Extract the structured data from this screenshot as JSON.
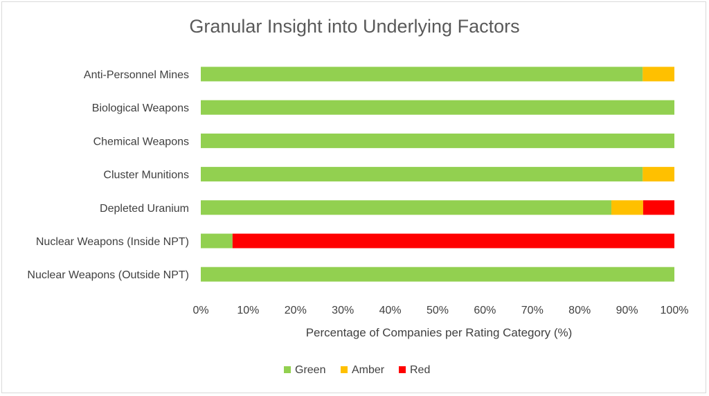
{
  "chart_data": {
    "type": "bar",
    "orientation": "horizontal",
    "stacked": true,
    "title": "Granular Insight into Underlying Factors",
    "xlabel": "Percentage of Companies per Rating Category (%)",
    "ylabel": "",
    "xlim": [
      0,
      100
    ],
    "x_ticks": [
      "0%",
      "10%",
      "20%",
      "30%",
      "40%",
      "50%",
      "60%",
      "70%",
      "80%",
      "90%",
      "100%"
    ],
    "categories": [
      "Anti-Personnel Mines",
      "Biological Weapons",
      "Chemical Weapons",
      "Cluster Munitions",
      "Depleted Uranium",
      "Nuclear Weapons (Inside NPT)",
      "Nuclear Weapons (Outside NPT)"
    ],
    "series": [
      {
        "name": "Green",
        "color": "#92d050",
        "values": [
          93.3,
          100,
          100,
          93.3,
          86.7,
          6.7,
          100
        ]
      },
      {
        "name": "Amber",
        "color": "#ffc000",
        "values": [
          6.7,
          0,
          0,
          6.7,
          6.7,
          0,
          0
        ]
      },
      {
        "name": "Red",
        "color": "#ff0000",
        "values": [
          0,
          0,
          0,
          0,
          6.6,
          93.3,
          0
        ]
      }
    ],
    "grid": false,
    "legend_position": "bottom"
  }
}
